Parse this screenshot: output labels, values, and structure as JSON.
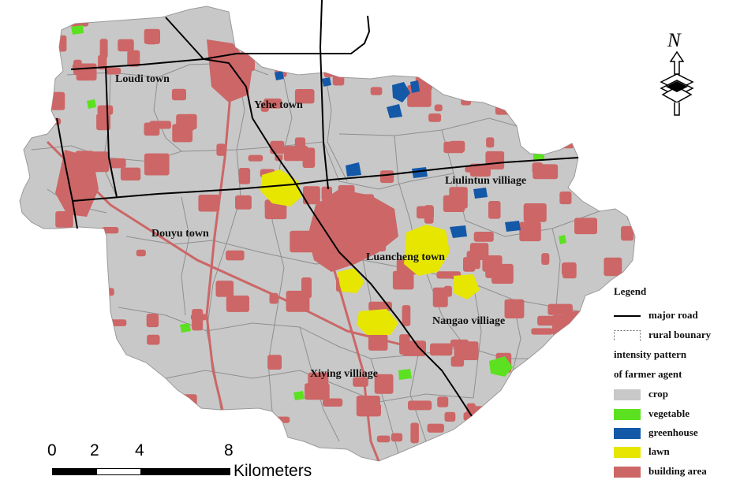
{
  "colors": {
    "crop": "#c8c8c8",
    "vegetable": "#5be11f",
    "greenhouse": "#1458a8",
    "lawn": "#e6e600",
    "building": "#cd6666",
    "road": "#000000",
    "boundary": "#8f8f8f",
    "background": "#ffffff"
  },
  "map": {
    "labels": {
      "loudi": "Loudi town",
      "yehe": "Yehe town",
      "liulintun": "Liulintun villiage",
      "douyu": "Douyu town",
      "luancheng": "Luancheng town",
      "nangao": "Nangao villiage",
      "xiying": "Xiying villiage"
    }
  },
  "legend": {
    "title": "Legend",
    "major_road": "major road",
    "rural_boundary": "rural bounary",
    "note_line1": "intensity pattern",
    "note_line2": "of  farmer agent",
    "crop": "crop",
    "vegetable": "vegetable",
    "greenhouse": "greenhouse",
    "lawn": "lawn",
    "building": "building area"
  },
  "scale_bar": {
    "ticks": [
      "0",
      "2",
      "4",
      "8"
    ],
    "unit": "Kilometers"
  },
  "north_arrow": {
    "letter": "N",
    "icon": "north-arrow-icon"
  }
}
